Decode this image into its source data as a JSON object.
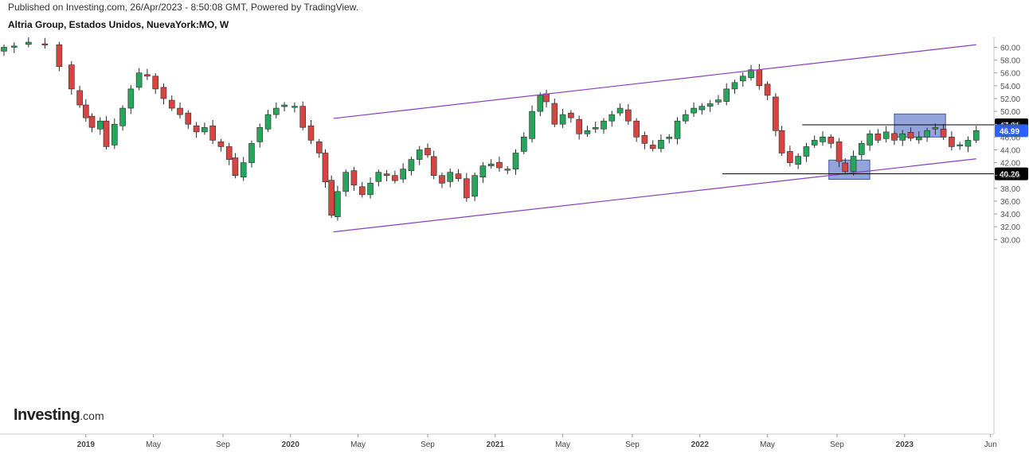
{
  "header": {
    "published": "Published on Investing.com, 26/Apr/2023 - 8:50:08 GMT, Powered by TradingView.",
    "symbol": "Altria Group, Estados Unidos, NuevaYork:MO, W"
  },
  "logo": {
    "main": "Investing",
    "suffix": ".com"
  },
  "colors": {
    "up": "#26a65b",
    "down": "#d64541",
    "channel": "#8a3fc0",
    "zone": "#6f86cf",
    "level": "#000000",
    "current": "#2962ff"
  },
  "chart_data": {
    "type": "candlestick",
    "title": "Altria Group, Estados Unidos, NuevaYork:MO, W",
    "ylim": [
      30,
      61
    ],
    "y_ticks": [
      "30.00",
      "32.00",
      "34.00",
      "36.00",
      "38.00",
      "40.00",
      "42.00",
      "44.00",
      "46.00",
      "48.00",
      "50.00",
      "52.00",
      "54.00",
      "56.00",
      "58.00",
      "60.00"
    ],
    "x_ticks": [
      {
        "label": "2019",
        "t": 2019.0,
        "bold": true
      },
      {
        "label": "May",
        "t": 2019.33
      },
      {
        "label": "Sep",
        "t": 2019.67
      },
      {
        "label": "2020",
        "t": 2020.0,
        "bold": true
      },
      {
        "label": "May",
        "t": 2020.33
      },
      {
        "label": "Sep",
        "t": 2020.67
      },
      {
        "label": "2021",
        "t": 2021.0,
        "bold": true
      },
      {
        "label": "May",
        "t": 2021.33
      },
      {
        "label": "Sep",
        "t": 2021.67
      },
      {
        "label": "2022",
        "t": 2022.0,
        "bold": true
      },
      {
        "label": "May",
        "t": 2022.33
      },
      {
        "label": "Sep",
        "t": 2022.67
      },
      {
        "label": "2023",
        "t": 2023.0,
        "bold": true
      },
      {
        "label": "Jun",
        "t": 2023.42
      }
    ],
    "channel_lines": [
      {
        "name": "upper",
        "t1": 2020.21,
        "y1": 48.9,
        "t2": 2023.35,
        "y2": 60.4
      },
      {
        "name": "lower",
        "t1": 2020.21,
        "y1": 31.2,
        "t2": 2023.35,
        "y2": 42.6
      }
    ],
    "levels": [
      {
        "label": "47.91",
        "value": 47.91,
        "t_start": 2022.5,
        "color": "#000000"
      },
      {
        "label": "46.99",
        "value": 46.99,
        "t_start": null,
        "color": "#2962ff"
      },
      {
        "label": "40.26",
        "value": 40.26,
        "t_start": 2022.11,
        "color": "#000000"
      }
    ],
    "zones": [
      {
        "t1": 2022.95,
        "t2": 2023.2,
        "y1": 46.0,
        "y2": 49.6
      },
      {
        "t1": 2022.63,
        "t2": 2022.83,
        "y1": 39.4,
        "y2": 42.4
      }
    ],
    "closes": [
      [
        2018.6,
        60.0
      ],
      [
        2018.65,
        60.2
      ],
      [
        2018.72,
        60.8
      ],
      [
        2018.8,
        60.4
      ],
      [
        2018.87,
        57.0
      ],
      [
        2018.93,
        53.5
      ],
      [
        2018.97,
        51.0
      ],
      [
        2019.0,
        49.0
      ],
      [
        2019.03,
        47.5
      ],
      [
        2019.07,
        48.5
      ],
      [
        2019.1,
        44.5
      ],
      [
        2019.14,
        48.0
      ],
      [
        2019.18,
        50.5
      ],
      [
        2019.22,
        53.5
      ],
      [
        2019.26,
        56.0
      ],
      [
        2019.3,
        55.5
      ],
      [
        2019.34,
        53.5
      ],
      [
        2019.38,
        52.0
      ],
      [
        2019.42,
        50.5
      ],
      [
        2019.46,
        49.5
      ],
      [
        2019.5,
        48.0
      ],
      [
        2019.54,
        46.8
      ],
      [
        2019.58,
        47.5
      ],
      [
        2019.62,
        45.5
      ],
      [
        2019.66,
        44.5
      ],
      [
        2019.7,
        42.5
      ],
      [
        2019.73,
        40.0
      ],
      [
        2019.77,
        42.0
      ],
      [
        2019.81,
        45.0
      ],
      [
        2019.85,
        47.5
      ],
      [
        2019.89,
        49.5
      ],
      [
        2019.93,
        50.5
      ],
      [
        2019.97,
        51.0
      ],
      [
        2020.02,
        50.8
      ],
      [
        2020.06,
        47.5
      ],
      [
        2020.1,
        45.5
      ],
      [
        2020.14,
        43.5
      ],
      [
        2020.17,
        39.0
      ],
      [
        2020.2,
        33.8
      ],
      [
        2020.23,
        37.5
      ],
      [
        2020.27,
        40.5
      ],
      [
        2020.31,
        38.5
      ],
      [
        2020.35,
        37.0
      ],
      [
        2020.39,
        38.8
      ],
      [
        2020.43,
        40.5
      ],
      [
        2020.47,
        40.0
      ],
      [
        2020.51,
        39.2
      ],
      [
        2020.55,
        41.0
      ],
      [
        2020.59,
        42.5
      ],
      [
        2020.63,
        44.0
      ],
      [
        2020.67,
        43.2
      ],
      [
        2020.7,
        40.0
      ],
      [
        2020.74,
        38.8
      ],
      [
        2020.78,
        40.5
      ],
      [
        2020.82,
        39.5
      ],
      [
        2020.86,
        36.5
      ],
      [
        2020.9,
        40.0
      ],
      [
        2020.94,
        41.5
      ],
      [
        2020.98,
        41.8
      ],
      [
        2021.02,
        41.2
      ],
      [
        2021.06,
        41.0
      ],
      [
        2021.1,
        43.5
      ],
      [
        2021.14,
        46.0
      ],
      [
        2021.18,
        50.0
      ],
      [
        2021.22,
        52.5
      ],
      [
        2021.25,
        51.5
      ],
      [
        2021.29,
        48.0
      ],
      [
        2021.33,
        49.5
      ],
      [
        2021.37,
        49.0
      ],
      [
        2021.41,
        46.5
      ],
      [
        2021.45,
        47.0
      ],
      [
        2021.49,
        47.5
      ],
      [
        2021.53,
        48.5
      ],
      [
        2021.57,
        49.5
      ],
      [
        2021.61,
        50.5
      ],
      [
        2021.65,
        48.5
      ],
      [
        2021.69,
        46.0
      ],
      [
        2021.73,
        45.0
      ],
      [
        2021.77,
        44.2
      ],
      [
        2021.81,
        45.5
      ],
      [
        2021.85,
        46.0
      ],
      [
        2021.89,
        48.5
      ],
      [
        2021.93,
        49.5
      ],
      [
        2021.97,
        50.5
      ],
      [
        2022.01,
        50.8
      ],
      [
        2022.05,
        51.2
      ],
      [
        2022.09,
        51.8
      ],
      [
        2022.13,
        53.5
      ],
      [
        2022.17,
        54.5
      ],
      [
        2022.21,
        55.5
      ],
      [
        2022.25,
        56.5
      ],
      [
        2022.29,
        54.0
      ],
      [
        2022.33,
        52.5
      ],
      [
        2022.37,
        47.0
      ],
      [
        2022.4,
        43.5
      ],
      [
        2022.44,
        42.0
      ],
      [
        2022.48,
        43.0
      ],
      [
        2022.52,
        44.5
      ],
      [
        2022.56,
        45.5
      ],
      [
        2022.6,
        46.0
      ],
      [
        2022.64,
        45.0
      ],
      [
        2022.68,
        42.2
      ],
      [
        2022.71,
        40.6
      ],
      [
        2022.75,
        43.0
      ],
      [
        2022.79,
        45.0
      ],
      [
        2022.83,
        46.5
      ],
      [
        2022.87,
        45.5
      ],
      [
        2022.91,
        46.8
      ],
      [
        2022.95,
        45.5
      ],
      [
        2022.99,
        46.5
      ],
      [
        2023.03,
        45.8
      ],
      [
        2023.07,
        46.0
      ],
      [
        2023.11,
        47.0
      ],
      [
        2023.15,
        47.5
      ],
      [
        2023.19,
        46.0
      ],
      [
        2023.23,
        44.5
      ],
      [
        2023.27,
        44.8
      ],
      [
        2023.31,
        45.5
      ],
      [
        2023.35,
        46.99
      ]
    ]
  }
}
